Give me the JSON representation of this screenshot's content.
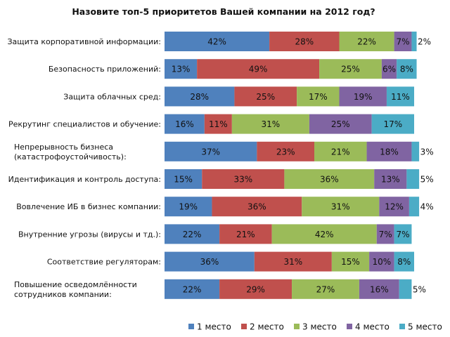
{
  "chart_data": {
    "type": "bar",
    "orientation": "horizontal",
    "stacked": true,
    "title": "Назовите топ-5 приоритетов Вашей компании на 2012 год?",
    "categories": [
      [
        "Защита корпоративной информации:"
      ],
      [
        "Безопасность приложений:"
      ],
      [
        "Защита облачных сред:"
      ],
      [
        "Рекрутинг специалистов и обучение:"
      ],
      [
        "Непрерывность бизнеса",
        "(катастрофоустойчивость):"
      ],
      [
        "Идентификация и контроль доступа:"
      ],
      [
        "Вовлечение ИБ в бизнес компании:"
      ],
      [
        "Внутренние угрозы (вирусы и тд.):"
      ],
      [
        "Соответствие регуляторам:"
      ],
      [
        "Повышение осведомлённости",
        "сотрудников компании:"
      ]
    ],
    "series": [
      {
        "name": "1 место",
        "color": "#4f81bd",
        "values": [
          42,
          13,
          28,
          16,
          37,
          15,
          19,
          22,
          36,
          22
        ]
      },
      {
        "name": "2 место",
        "color": "#c0504d",
        "values": [
          28,
          49,
          25,
          11,
          23,
          33,
          36,
          21,
          31,
          29
        ]
      },
      {
        "name": "3 место",
        "color": "#9bbb59",
        "values": [
          22,
          25,
          17,
          31,
          21,
          36,
          31,
          42,
          15,
          27
        ]
      },
      {
        "name": "4 место",
        "color": "#8064a2",
        "values": [
          7,
          6,
          19,
          25,
          18,
          13,
          12,
          7,
          10,
          16
        ]
      },
      {
        "name": "5 место",
        "color": "#4bacc6",
        "values": [
          2,
          8,
          11,
          17,
          3,
          5,
          4,
          7,
          8,
          5
        ]
      }
    ],
    "value_suffix": "%",
    "xlim": [
      0,
      100
    ],
    "grid": false,
    "legend": "bottom"
  }
}
